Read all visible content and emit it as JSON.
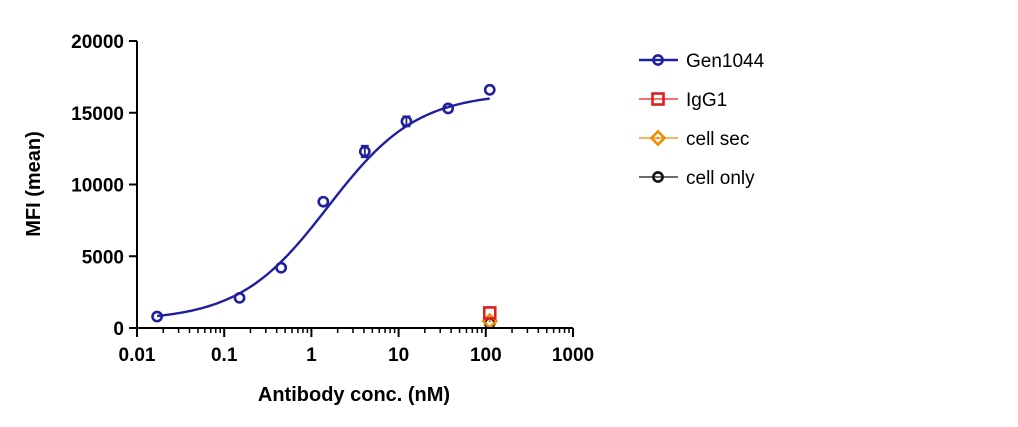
{
  "chart_data": {
    "type": "scatter",
    "xlabel": "Antibody conc. (nM)",
    "ylabel": "MFI (mean)",
    "x_scale": "log",
    "xlim": [
      0.01,
      1000
    ],
    "ylim": [
      0,
      20000
    ],
    "x_ticks": [
      0.01,
      0.1,
      1,
      10,
      100,
      1000
    ],
    "x_tick_labels": [
      "0.01",
      "0.1",
      "1",
      "10",
      "100",
      "1000"
    ],
    "y_ticks": [
      0,
      5000,
      10000,
      15000,
      20000
    ],
    "y_tick_labels": [
      "0",
      "5000",
      "10000",
      "15000",
      "20000"
    ],
    "grid": false,
    "legend_position": "right",
    "series": [
      {
        "name": "Gen1044",
        "marker": "circle",
        "color": "#1f1fa0",
        "fit_curve": true,
        "points": [
          {
            "x": 0.017,
            "y": 800,
            "err": 0
          },
          {
            "x": 0.15,
            "y": 2100,
            "err": 0
          },
          {
            "x": 0.45,
            "y": 4200,
            "err": 0
          },
          {
            "x": 1.37,
            "y": 8800,
            "err": 0
          },
          {
            "x": 4.1,
            "y": 12300,
            "err": 400
          },
          {
            "x": 12.3,
            "y": 14400,
            "err": 350
          },
          {
            "x": 37,
            "y": 15300,
            "err": 0
          },
          {
            "x": 111,
            "y": 16600,
            "err": 0
          }
        ]
      },
      {
        "name": "IgG1",
        "marker": "square",
        "color": "#e02020",
        "points": [
          {
            "x": 111,
            "y": 1050,
            "err": 0
          }
        ]
      },
      {
        "name": "cell sec",
        "marker": "diamond",
        "color": "#f08a00",
        "points": [
          {
            "x": 111,
            "y": 480,
            "err": 0
          }
        ]
      },
      {
        "name": "cell only",
        "marker": "circle",
        "color": "#111111",
        "points": [
          {
            "x": 111,
            "y": 350,
            "err": 0
          }
        ]
      }
    ]
  }
}
